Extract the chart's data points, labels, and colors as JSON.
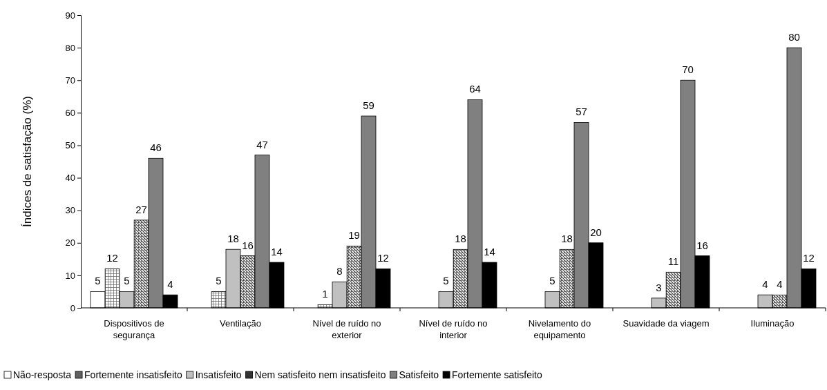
{
  "chart_data": {
    "type": "bar",
    "ylabel": "Índices de satisfação (%)",
    "categories": [
      "Dispositivos de segurança",
      "Ventilação",
      "Nível de ruído no exterior",
      "Nível de ruído no interior",
      "Nivelamento do equipamento",
      "Suavidade da viagem",
      "Iluminação"
    ],
    "series": [
      {
        "name": "Não-resposta",
        "color": "#ffffff",
        "values": [
          5,
          null,
          null,
          null,
          null,
          null,
          null
        ]
      },
      {
        "name": "Fortemente insatisfeito",
        "color": "#606060",
        "values": [
          12,
          5,
          1,
          null,
          null,
          null,
          null
        ]
      },
      {
        "name": "Insatisfeito",
        "color": "#c0c0c0",
        "values": [
          5,
          18,
          8,
          5,
          5,
          3,
          4
        ]
      },
      {
        "name": "Nem satisfeito nem insatisfeito",
        "color": "#333333",
        "values": [
          27,
          16,
          19,
          18,
          18,
          11,
          4
        ]
      },
      {
        "name": "Satisfeito",
        "color": "#808080",
        "values": [
          46,
          47,
          59,
          64,
          57,
          70,
          80
        ]
      },
      {
        "name": "Fortemente satisfeito",
        "color": "#000000",
        "values": [
          4,
          14,
          12,
          14,
          20,
          16,
          12
        ]
      }
    ],
    "ylim": [
      0,
      90
    ],
    "yticks": [
      0,
      10,
      20,
      30,
      40,
      50,
      60,
      70,
      80,
      90
    ],
    "grid": false,
    "data_labels": true,
    "legend": "bottom"
  }
}
